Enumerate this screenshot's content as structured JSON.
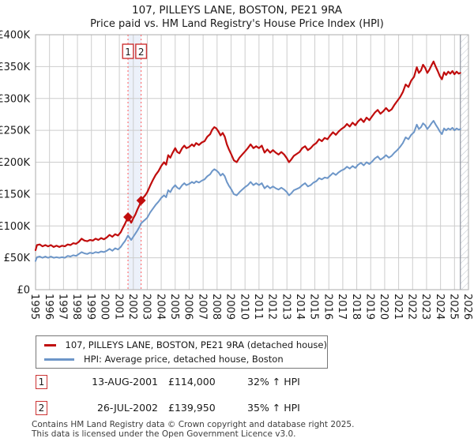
{
  "title": "107, PILLEYS LANE, BOSTON, PE21 9RA",
  "subtitle": "Price paid vs. HM Land Registry's House Price Index (HPI)",
  "chart_data": {
    "type": "line",
    "title": "107, PILLEYS LANE, BOSTON, PE21 9RA",
    "subtitle": "Price paid vs. HM Land Registry's House Price Index (HPI)",
    "xlabel": "",
    "ylabel": "",
    "grid": true,
    "legend_position": "bottom-left",
    "xlim": [
      1995,
      2026
    ],
    "ylim": [
      0,
      400000
    ],
    "yticks": [
      {
        "value": 0,
        "label": "£0"
      },
      {
        "value": 50000,
        "label": "£50K"
      },
      {
        "value": 100000,
        "label": "£100K"
      },
      {
        "value": 150000,
        "label": "£150K"
      },
      {
        "value": 200000,
        "label": "£200K"
      },
      {
        "value": 250000,
        "label": "£250K"
      },
      {
        "value": 300000,
        "label": "£300K"
      },
      {
        "value": 350000,
        "label": "£350K"
      },
      {
        "value": 400000,
        "label": "£400K"
      }
    ],
    "xticks": [
      "1995",
      "1996",
      "1997",
      "1998",
      "1999",
      "2000",
      "2001",
      "2002",
      "2003",
      "2004",
      "2005",
      "2006",
      "2007",
      "2008",
      "2009",
      "2010",
      "2011",
      "2012",
      "2013",
      "2014",
      "2015",
      "2016",
      "2017",
      "2018",
      "2019",
      "2020",
      "2021",
      "2022",
      "2023",
      "2024",
      "2025",
      "2026"
    ],
    "future_hatch_start": 2025.42,
    "x": [
      1995.0,
      1995.1,
      1995.3,
      1995.5,
      1995.7,
      1995.9,
      1996.1,
      1996.3,
      1996.5,
      1996.7,
      1996.9,
      1997.1,
      1997.3,
      1997.5,
      1997.7,
      1997.9,
      1998.1,
      1998.3,
      1998.5,
      1998.7,
      1998.9,
      1999.1,
      1999.3,
      1999.5,
      1999.7,
      1999.9,
      2000.1,
      2000.3,
      2000.5,
      2000.7,
      2000.9,
      2001.1,
      2001.25,
      2001.4,
      2001.5,
      2001.62,
      2001.75,
      2001.85,
      2002.0,
      2002.15,
      2002.3,
      2002.45,
      2002.56,
      2002.7,
      2002.85,
      2003.0,
      2003.2,
      2003.4,
      2003.6,
      2003.8,
      2004.0,
      2004.2,
      2004.35,
      2004.5,
      2004.65,
      2004.8,
      2005.0,
      2005.15,
      2005.3,
      2005.5,
      2005.65,
      2005.8,
      2006.0,
      2006.2,
      2006.35,
      2006.5,
      2006.7,
      2006.9,
      2007.1,
      2007.3,
      2007.5,
      2007.65,
      2007.8,
      2007.95,
      2008.1,
      2008.25,
      2008.4,
      2008.55,
      2008.7,
      2008.85,
      2009.0,
      2009.2,
      2009.4,
      2009.6,
      2009.8,
      2010.0,
      2010.2,
      2010.4,
      2010.6,
      2010.8,
      2011.0,
      2011.2,
      2011.4,
      2011.6,
      2011.8,
      2012.0,
      2012.2,
      2012.4,
      2012.6,
      2012.8,
      2013.0,
      2013.15,
      2013.3,
      2013.5,
      2013.7,
      2013.9,
      2014.1,
      2014.3,
      2014.5,
      2014.7,
      2014.9,
      2015.1,
      2015.3,
      2015.5,
      2015.7,
      2015.9,
      2016.1,
      2016.3,
      2016.5,
      2016.7,
      2016.9,
      2017.1,
      2017.3,
      2017.5,
      2017.7,
      2017.9,
      2018.1,
      2018.3,
      2018.5,
      2018.7,
      2018.9,
      2019.1,
      2019.3,
      2019.5,
      2019.7,
      2019.9,
      2020.1,
      2020.3,
      2020.5,
      2020.7,
      2020.9,
      2021.1,
      2021.3,
      2021.5,
      2021.7,
      2021.9,
      2022.1,
      2022.3,
      2022.45,
      2022.6,
      2022.75,
      2022.9,
      2023.05,
      2023.2,
      2023.35,
      2023.5,
      2023.65,
      2023.8,
      2023.95,
      2024.1,
      2024.25,
      2024.4,
      2024.55,
      2024.7,
      2024.85,
      2025.0,
      2025.15,
      2025.3,
      2025.42
    ],
    "series": [
      {
        "name": "107, PILLEYS LANE, BOSTON, PE21 9RA (detached house)",
        "color": "#c00d0d",
        "values_gbp_k": [
          62,
          70,
          71,
          68,
          70,
          68,
          70,
          67,
          69,
          67,
          69,
          68,
          71,
          70,
          73,
          72,
          75,
          80,
          77,
          76,
          78,
          77,
          80,
          78,
          81,
          79,
          82,
          86,
          83,
          87,
          85,
          90,
          97,
          103,
          108,
          114,
          109,
          105,
          112,
          118,
          126,
          133,
          140,
          144,
          148,
          153,
          163,
          172,
          180,
          186,
          194,
          200,
          196,
          211,
          207,
          214,
          222,
          216,
          214,
          222,
          226,
          222,
          224,
          228,
          225,
          230,
          227,
          231,
          233,
          240,
          244,
          251,
          255,
          253,
          248,
          242,
          246,
          240,
          228,
          220,
          213,
          203,
          200,
          207,
          212,
          217,
          222,
          228,
          222,
          225,
          222,
          226,
          215,
          220,
          215,
          219,
          215,
          212,
          216,
          212,
          206,
          200,
          204,
          210,
          213,
          216,
          222,
          225,
          219,
          222,
          227,
          230,
          236,
          233,
          238,
          236,
          242,
          247,
          243,
          248,
          252,
          255,
          260,
          256,
          262,
          258,
          264,
          268,
          263,
          270,
          266,
          272,
          278,
          282,
          276,
          280,
          285,
          280,
          283,
          290,
          296,
          302,
          310,
          322,
          318,
          328,
          334,
          349,
          340,
          344,
          353,
          348,
          340,
          345,
          352,
          358,
          350,
          343,
          335,
          330,
          341,
          337,
          342,
          339,
          343,
          338,
          342,
          339,
          340
        ]
      },
      {
        "name": "HPI: Average price, detached house, Boston",
        "color": "#6d96c8",
        "values_gbp_k": [
          45,
          51,
          52,
          50,
          52,
          50,
          52,
          50,
          51,
          50,
          51,
          50,
          53,
          52,
          54,
          53,
          56,
          59,
          57,
          56,
          58,
          57,
          59,
          58,
          60,
          59,
          61,
          64,
          61,
          65,
          63,
          67,
          72,
          76,
          80,
          85,
          81,
          78,
          83,
          88,
          93,
          99,
          104,
          107,
          110,
          113,
          121,
          127,
          133,
          138,
          144,
          148,
          145,
          156,
          153,
          159,
          164,
          160,
          158,
          164,
          167,
          164,
          166,
          169,
          167,
          170,
          168,
          171,
          173,
          178,
          181,
          186,
          189,
          187,
          184,
          179,
          182,
          178,
          169,
          163,
          158,
          150,
          148,
          153,
          157,
          161,
          164,
          169,
          164,
          167,
          164,
          167,
          159,
          163,
          159,
          162,
          159,
          157,
          160,
          157,
          153,
          148,
          151,
          156,
          158,
          160,
          164,
          167,
          162,
          164,
          168,
          170,
          175,
          173,
          176,
          175,
          179,
          183,
          180,
          184,
          187,
          189,
          193,
          190,
          194,
          191,
          196,
          199,
          195,
          200,
          197,
          201,
          206,
          209,
          204,
          207,
          211,
          207,
          210,
          215,
          219,
          224,
          230,
          239,
          236,
          243,
          247,
          259,
          252,
          255,
          261,
          258,
          252,
          256,
          261,
          265,
          259,
          254,
          248,
          244,
          253,
          250,
          253,
          251,
          254,
          250,
          253,
          251,
          252
        ]
      }
    ],
    "sale_markers": [
      {
        "label": "1",
        "year": 2001.62,
        "price_gbp": 114000
      },
      {
        "label": "2",
        "year": 2002.56,
        "price_gbp": 139950
      }
    ]
  },
  "legend": {
    "items": [
      {
        "label": "107, PILLEYS LANE, BOSTON, PE21 9RA (detached house)",
        "color": "#c00d0d"
      },
      {
        "label": "HPI: Average price, detached house, Boston",
        "color": "#6d96c8"
      }
    ]
  },
  "transactions": [
    {
      "num": "1",
      "date": "13-AUG-2001",
      "price": "£114,000",
      "hpi": "32% ↑ HPI"
    },
    {
      "num": "2",
      "date": "26-JUL-2002",
      "price": "£139,950",
      "hpi": "35% ↑ HPI"
    }
  ],
  "footer": {
    "line1": "Contains HM Land Registry data © Crown copyright and database right 2025.",
    "line2": "This data is licensed under the Open Government Licence v3.0."
  },
  "colors": {
    "grid": "#cdcdcd",
    "plot_border": "#ababab",
    "sale_vline": "#ff5c5c",
    "sale_band": "rgba(110,150,220,0.13)",
    "hatch_line": "#bcc2cc",
    "hatch_edge": "#8d939e"
  }
}
